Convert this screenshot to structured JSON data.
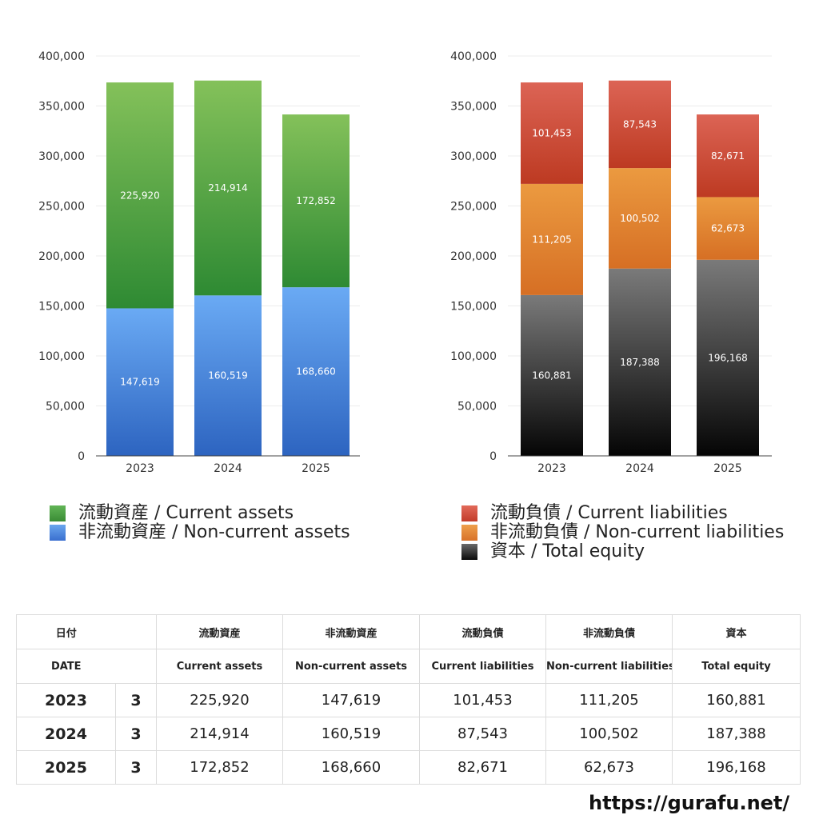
{
  "chart_data": [
    {
      "type": "bar",
      "stacked": true,
      "categories": [
        "2023",
        "2024",
        "2025"
      ],
      "ylim": [
        0,
        400000
      ],
      "yticks": [
        "0",
        "50,000",
        "100,000",
        "150,000",
        "200,000",
        "250,000",
        "300,000",
        "350,000",
        "400,000"
      ],
      "grid": true,
      "series": [
        {
          "name": "非流動資産 / Non-current assets",
          "values": [
            147619,
            160519,
            168660
          ],
          "labels": [
            "147,619",
            "160,519",
            "168,660"
          ],
          "color_top": "#6aaaf4",
          "color_bottom": "#2d64c0"
        },
        {
          "name": "流動資産 / Current assets",
          "values": [
            225920,
            214914,
            172852
          ],
          "labels": [
            "225,920",
            "214,914",
            "172,852"
          ],
          "color_top": "#84c15a",
          "color_bottom": "#2e8a33"
        }
      ]
    },
    {
      "type": "bar",
      "stacked": true,
      "categories": [
        "2023",
        "2024",
        "2025"
      ],
      "ylim": [
        0,
        400000
      ],
      "yticks": [
        "0",
        "50,000",
        "100,000",
        "150,000",
        "200,000",
        "250,000",
        "300,000",
        "350,000",
        "400,000"
      ],
      "grid": true,
      "series": [
        {
          "name": "資本 / Total equity",
          "values": [
            160881,
            187388,
            196168
          ],
          "labels": [
            "160,881",
            "187,388",
            "196,168"
          ],
          "color_top": "#7a7a7a",
          "color_bottom": "#050505"
        },
        {
          "name": "非流動負債 / Non-current liabilities",
          "values": [
            111205,
            100502,
            62673
          ],
          "labels": [
            "111,205",
            "100,502",
            "62,673"
          ],
          "color_top": "#eb9a40",
          "color_bottom": "#d66f24"
        },
        {
          "name": "流動負債 / Current liabilities",
          "values": [
            101453,
            87543,
            82671
          ],
          "labels": [
            "101,453",
            "87,543",
            "82,671"
          ],
          "color_top": "#dc6455",
          "color_bottom": "#bd3a22"
        }
      ]
    }
  ],
  "legend_left": [
    {
      "label": "流動資産 / Current assets",
      "color": "#4aa041"
    },
    {
      "label": "非流動資産 / Non-current assets",
      "color": "#4a85e0"
    }
  ],
  "legend_right": [
    {
      "label": "流動負債 / Current liabilities",
      "color": "#d5503e"
    },
    {
      "label": "非流動負債 / Non-current liabilities",
      "color": "#e28633"
    },
    {
      "label": "資本 / Total equity",
      "color": "#2a2a2a"
    }
  ],
  "table": {
    "headers_jp": [
      "日付",
      "流動資産",
      "非流動資産",
      "流動負債",
      "非流動負債",
      "資本"
    ],
    "headers_en": [
      "DATE",
      "Current assets",
      "Non-current assets",
      "Current liabilities",
      "Non-current liabilities",
      "Total equity"
    ],
    "rows": [
      {
        "year": "2023",
        "month": "3",
        "cells": [
          "225,920",
          "147,619",
          "101,453",
          "111,205",
          "160,881"
        ]
      },
      {
        "year": "2024",
        "month": "3",
        "cells": [
          "214,914",
          "160,519",
          "87,543",
          "100,502",
          "187,388"
        ]
      },
      {
        "year": "2025",
        "month": "3",
        "cells": [
          "172,852",
          "168,660",
          "82,671",
          "62,673",
          "196,168"
        ]
      }
    ]
  },
  "footer": {
    "site": "https://gurafu.net/"
  }
}
